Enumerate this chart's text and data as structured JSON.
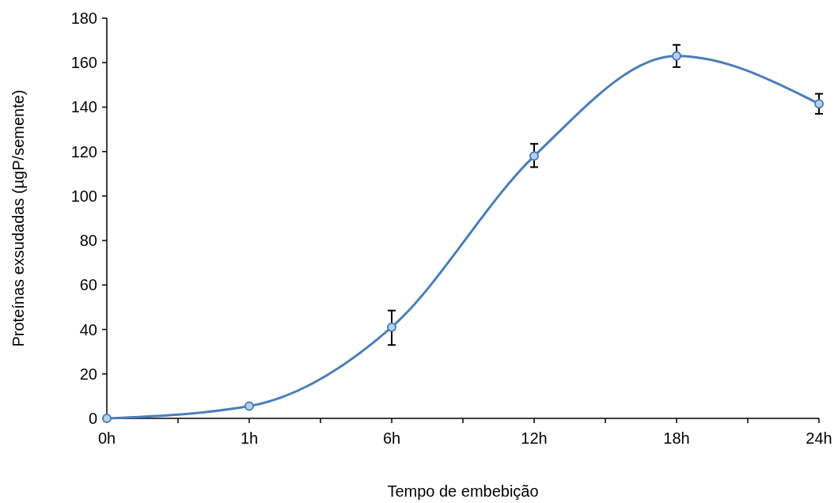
{
  "chart_data": {
    "type": "line",
    "xlabel": "Tempo de embebição",
    "ylabel": "Proteínas exsudadas (µgP/semente)",
    "categories": [
      "0h",
      "1h",
      "6h",
      "12h",
      "18h",
      "24h"
    ],
    "series": [
      {
        "color": "#4a7ebb",
        "values": [
          0,
          5.5,
          41,
          118,
          163,
          141.5
        ],
        "errors": [
          null,
          null,
          [
            33,
            48.5
          ],
          [
            113,
            123.5
          ],
          [
            158,
            168
          ],
          [
            137,
            146
          ]
        ]
      }
    ],
    "ylim": [
      0,
      180
    ],
    "yticks": [
      0,
      20,
      40,
      60,
      80,
      100,
      120,
      140,
      160,
      180
    ],
    "grid": false,
    "marker": "circle",
    "line_style": "solid"
  }
}
